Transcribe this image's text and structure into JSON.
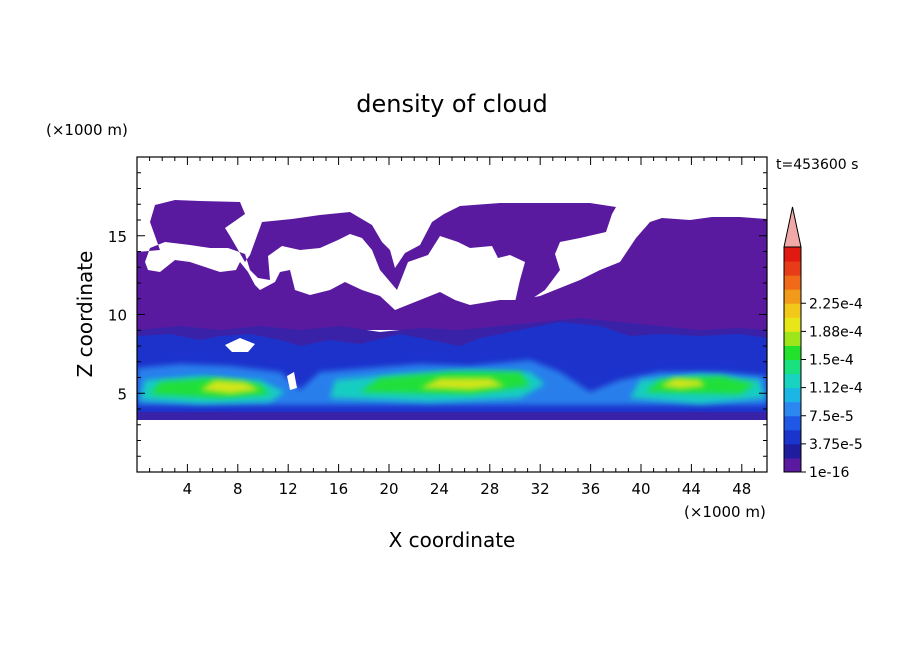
{
  "chart_data": {
    "type": "heatmap",
    "title": "density of cloud",
    "xlabel": "X coordinate",
    "ylabel": "Z coordinate",
    "x_unit": "(×1000 m)",
    "y_unit": "(×1000 m)",
    "time_label": "t=453600 s",
    "xlim": [
      0,
      50
    ],
    "ylim": [
      0,
      20
    ],
    "x_ticks": [
      4,
      8,
      12,
      16,
      20,
      24,
      28,
      32,
      36,
      40,
      44,
      48
    ],
    "y_ticks": [
      5,
      10,
      15
    ],
    "colorbar": {
      "labels": [
        "1e-16",
        "3.75e-5",
        "7.5e-5",
        "1.12e-4",
        "1.5e-4",
        "1.88e-4",
        "2.25e-4"
      ],
      "min": 0,
      "max": 0.00027,
      "colors": [
        "#5a1aa0",
        "#1f1c9e",
        "#1a34cc",
        "#1f58e6",
        "#2c88f0",
        "#1bb6e6",
        "#19d2c0",
        "#1be080",
        "#22e22c",
        "#9ee61b",
        "#e6e619",
        "#f2c81a",
        "#f29a1a",
        "#f06a1a",
        "#e83c18",
        "#e01a10"
      ],
      "extend_color": "#f0a8a8"
    },
    "field_description": "cloud density in the vertical x-z plane; dense layer between z≈3.5 and 9 (×1000 m) with maxima near z≈5-6, thin upper cloud between z≈9 and 17"
  }
}
